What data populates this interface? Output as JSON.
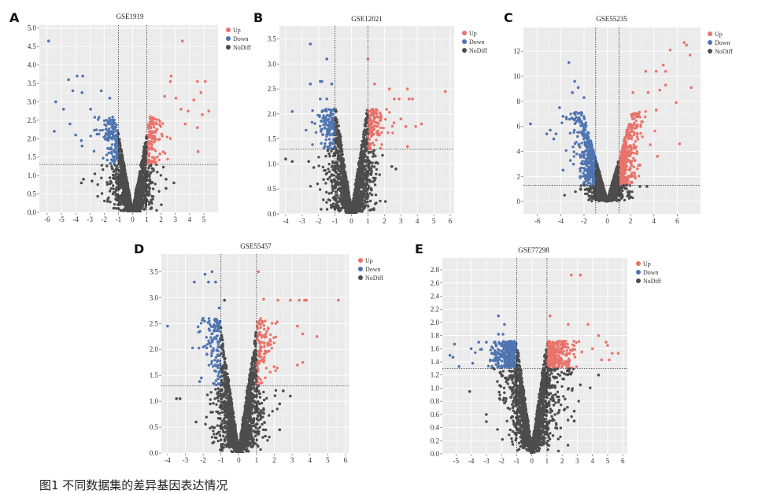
{
  "caption": "图1  不同数据集的差异基因表达情况",
  "colors": {
    "Up": "#e8736a",
    "Down": "#4f74b0",
    "NoDiff": "#4d4d4d",
    "panel_bg": "#ebebeb"
  },
  "chart_data": [
    {
      "type": "scatter",
      "panel": "A",
      "title": "GSE1919",
      "legend": [
        "Up",
        "Down",
        "NoDiff"
      ],
      "legend_position": "right",
      "xlim": [
        -6.55,
        6.0
      ],
      "ylim": [
        0,
        5.08
      ],
      "xticks": [
        -6,
        -5,
        -4,
        -3,
        -2,
        -1,
        0,
        1,
        2,
        3,
        4,
        5
      ],
      "yticks": [
        "0.0",
        "0.5",
        "1.0",
        "1.5",
        "2.0",
        "2.5",
        "3.0",
        "3.5",
        "4.0",
        "4.5",
        "5.0"
      ],
      "logfc_threshold": 1,
      "p_threshold_line": 1.3,
      "grid": true,
      "series": [
        {
          "name": "Up",
          "points": [
            [
              3.5,
              4.65
            ],
            [
              2.7,
              3.7
            ],
            [
              2.65,
              3.55
            ],
            [
              4.55,
              3.55
            ],
            [
              5.1,
              3.55
            ],
            [
              4.8,
              3.25
            ],
            [
              5.35,
              2.75
            ],
            [
              4.9,
              2.65
            ],
            [
              4.3,
              3.05
            ],
            [
              4.55,
              2.3
            ],
            [
              4.6,
              1.65
            ],
            [
              3.7,
              2.4
            ],
            [
              3.05,
              3.1
            ],
            [
              2.25,
              3.15
            ],
            [
              3.4,
              2.8
            ],
            [
              3.9,
              2.75
            ]
          ]
        },
        {
          "name": "Down",
          "points": [
            [
              -5.9,
              4.65
            ],
            [
              -3.9,
              3.7
            ],
            [
              -3.5,
              3.7
            ],
            [
              -4.5,
              3.6
            ],
            [
              -4.2,
              3.3
            ],
            [
              -3.55,
              3.25
            ],
            [
              -5.4,
              3.0
            ],
            [
              -4.85,
              2.8
            ],
            [
              -5.5,
              2.2
            ],
            [
              -4.0,
              2.1
            ],
            [
              -3.6,
              1.95
            ],
            [
              -3.55,
              1.8
            ],
            [
              -4.4,
              2.4
            ],
            [
              -2.2,
              3.3
            ],
            [
              -1.6,
              3.1
            ],
            [
              -2.95,
              2.8
            ]
          ]
        },
        {
          "name": "NoDiff",
          "points": [
            [
              -3.6,
              0.8
            ],
            [
              -3.45,
              0.9
            ],
            [
              -2.85,
              0.85
            ],
            [
              -1.75,
              0.3
            ],
            [
              2.9,
              0.8
            ],
            [
              2.35,
              0.65
            ],
            [
              2.35,
              0.9
            ]
          ]
        }
      ]
    },
    {
      "type": "scatter",
      "panel": "B",
      "title": "GSE12021",
      "legend": [
        "Up",
        "Down",
        "NoDiff"
      ],
      "legend_position": "right",
      "xlim": [
        -4.38,
        6.24
      ],
      "ylim": [
        0,
        3.76
      ],
      "xticks": [
        -4,
        -3,
        -2,
        -1,
        0,
        1,
        2,
        3,
        4,
        5,
        6
      ],
      "yticks": [
        "0.0",
        "0.5",
        "1.0",
        "1.5",
        "2.0",
        "2.5",
        "3.0",
        "3.5"
      ],
      "logfc_threshold": 1,
      "p_threshold_line": 1.3,
      "grid": true,
      "series": [
        {
          "name": "Up",
          "points": [
            [
              5.7,
              2.45
            ],
            [
              1.0,
              3.1
            ],
            [
              1.4,
              2.6
            ],
            [
              2.3,
              2.5
            ],
            [
              3.4,
              2.5
            ],
            [
              3.5,
              2.3
            ],
            [
              3.7,
              2.3
            ],
            [
              2.9,
              2.3
            ],
            [
              2.6,
              2.3
            ],
            [
              4.25,
              1.8
            ],
            [
              3.9,
              1.75
            ],
            [
              3.4,
              1.35
            ],
            [
              3.0,
              1.9
            ],
            [
              3.3,
              1.75
            ]
          ]
        },
        {
          "name": "Down",
          "points": [
            [
              -2.5,
              3.4
            ],
            [
              -1.5,
              3.1
            ],
            [
              -2.5,
              2.6
            ],
            [
              -3.6,
              2.05
            ],
            [
              -1.8,
              2.65
            ],
            [
              -1.9,
              2.65
            ],
            [
              -1.2,
              2.6
            ],
            [
              -1.9,
              2.3
            ],
            [
              -1.5,
              2.3
            ]
          ]
        },
        {
          "name": "NoDiff",
          "points": [
            [
              -4.0,
              1.1
            ],
            [
              -3.6,
              1.05
            ],
            [
              -2.6,
              1.05
            ],
            [
              1.5,
              0.22
            ],
            [
              2.7,
              0.9
            ],
            [
              2.45,
              0.95
            ]
          ]
        }
      ]
    },
    {
      "type": "scatter",
      "panel": "C",
      "title": "GSE55235",
      "legend": [
        "Up",
        "Down",
        "NoDiff"
      ],
      "legend_position": "right",
      "xlim": [
        -7.2,
        8.0
      ],
      "ylim": [
        -1.0,
        13.9
      ],
      "xticks": [
        -6,
        -4,
        -2,
        0,
        2,
        4,
        6
      ],
      "yticks": [
        "0",
        "2",
        "4",
        "6",
        "8",
        "10",
        "12"
      ],
      "logfc_threshold": 1,
      "p_threshold_line": 1.3,
      "grid": true,
      "series": [
        {
          "name": "Up",
          "points": [
            [
              6.6,
              12.7
            ],
            [
              6.8,
              12.5
            ],
            [
              7.1,
              11.7
            ],
            [
              5.4,
              12.1
            ],
            [
              4.8,
              10.9
            ],
            [
              5.0,
              10.4
            ],
            [
              4.2,
              10.4
            ],
            [
              3.3,
              10.4
            ],
            [
              5.0,
              9.3
            ],
            [
              7.2,
              9.1
            ],
            [
              4.5,
              8.9
            ],
            [
              5.9,
              7.9
            ],
            [
              6.2,
              4.6
            ],
            [
              4.3,
              3.6
            ],
            [
              4.2,
              7.3
            ],
            [
              3.5,
              8.7
            ],
            [
              2.2,
              8.7
            ]
          ]
        },
        {
          "name": "Down",
          "points": [
            [
              -6.6,
              6.2
            ],
            [
              -3.3,
              11.1
            ],
            [
              -2.8,
              9.6
            ],
            [
              -2.5,
              9.1
            ],
            [
              -3.0,
              8.7
            ],
            [
              -2.0,
              8.3
            ],
            [
              -4.1,
              7.5
            ],
            [
              -4.9,
              5.7
            ],
            [
              -5.2,
              5.4
            ],
            [
              -4.6,
              5.0
            ],
            [
              -4.4,
              5.4
            ],
            [
              -3.8,
              2.5
            ],
            [
              -3.8,
              6.8
            ],
            [
              -3.5,
              6.6
            ]
          ]
        },
        {
          "name": "NoDiff",
          "points": [
            [
              1.9,
              0.8
            ],
            [
              2.8,
              1.2
            ],
            [
              3.4,
              1.2
            ],
            [
              -2.3,
              1.0
            ]
          ]
        }
      ]
    },
    {
      "type": "scatter",
      "panel": "D",
      "title": "GSE55457",
      "legend": [
        "Up",
        "Down",
        "NoDiff"
      ],
      "legend_position": "right",
      "xlim": [
        -4.35,
        6.18
      ],
      "ylim": [
        0,
        3.84
      ],
      "xticks": [
        -4,
        -3,
        -2,
        -1,
        0,
        1,
        2,
        3,
        4,
        5,
        6
      ],
      "yticks": [
        "0.0",
        "0.5",
        "1.0",
        "1.5",
        "2.0",
        "2.5",
        "3.0",
        "3.5"
      ],
      "logfc_threshold": 1,
      "p_threshold_line": 1.3,
      "grid": true,
      "series": [
        {
          "name": "Up",
          "points": [
            [
              1.1,
              3.5
            ],
            [
              5.6,
              2.95
            ],
            [
              3.8,
              2.95
            ],
            [
              3.7,
              2.95
            ],
            [
              3.4,
              2.95
            ],
            [
              2.9,
              2.95
            ],
            [
              2.2,
              2.95
            ],
            [
              1.4,
              2.97
            ],
            [
              4.4,
              2.25
            ],
            [
              3.6,
              2.3
            ],
            [
              3.3,
              1.7
            ],
            [
              3.6,
              1.75
            ],
            [
              3.3,
              2.45
            ]
          ]
        },
        {
          "name": "Down",
          "points": [
            [
              -1.5,
              3.5
            ],
            [
              -1.9,
              3.45
            ],
            [
              -2.5,
              3.3
            ],
            [
              -1.7,
              3.3
            ],
            [
              -1.3,
              3.3
            ],
            [
              -4.0,
              2.45
            ],
            [
              -1.1,
              2.8
            ],
            [
              -2.0,
              2.6
            ],
            [
              -2.1,
              1.45
            ],
            [
              -2.2,
              1.38
            ]
          ]
        },
        {
          "name": "NoDiff",
          "points": [
            [
              -3.5,
              1.05
            ],
            [
              -3.3,
              1.05
            ],
            [
              -2.4,
              0.6
            ],
            [
              2.3,
              0.45
            ],
            [
              2.9,
              1.1
            ],
            [
              2.5,
              1.2
            ],
            [
              -0.8,
              2.95
            ],
            [
              2.3,
              0.95
            ]
          ]
        }
      ]
    },
    {
      "type": "scatter",
      "panel": "E",
      "title": "GSE77298",
      "legend": [
        "Up",
        "Down",
        "NoDiff"
      ],
      "legend_position": "right",
      "xlim": [
        -5.9,
        6.3
      ],
      "ylim": [
        0,
        2.98
      ],
      "xticks": [
        -5,
        -4,
        -3,
        -2,
        -1,
        0,
        1,
        2,
        3,
        4,
        5,
        6
      ],
      "yticks": [
        "0.0",
        "0.2",
        "0.4",
        "0.6",
        "0.8",
        "1.0",
        "1.2",
        "1.4",
        "1.6",
        "1.8",
        "2.0",
        "2.2",
        "2.4",
        "2.6",
        "2.8"
      ],
      "logfc_threshold": 1,
      "p_threshold_line": 1.3,
      "grid": true,
      "series": [
        {
          "name": "Up",
          "points": [
            [
              2.6,
              2.72
            ],
            [
              3.2,
              2.72
            ],
            [
              1.2,
              2.1
            ],
            [
              2.4,
              1.97
            ],
            [
              3.7,
              1.97
            ],
            [
              4.4,
              1.8
            ],
            [
              4.9,
              1.7
            ],
            [
              5.0,
              1.65
            ],
            [
              5.7,
              1.53
            ],
            [
              5.3,
              1.53
            ],
            [
              4.0,
              1.6
            ],
            [
              4.6,
              1.43
            ],
            [
              5.1,
              1.43
            ],
            [
              3.3,
              1.55
            ]
          ]
        },
        {
          "name": "Down",
          "points": [
            [
              -2.2,
              2.1
            ],
            [
              -1.8,
              1.97
            ],
            [
              -2.2,
              1.82
            ],
            [
              -1.9,
              1.82
            ],
            [
              -5.1,
              1.67
            ],
            [
              -5.4,
              1.5
            ],
            [
              -5.2,
              1.47
            ],
            [
              -4.0,
              1.6
            ],
            [
              -3.5,
              1.7
            ],
            [
              -3.0,
              1.7
            ],
            [
              -4.8,
              1.33
            ],
            [
              -3.9,
              1.38
            ]
          ]
        },
        {
          "name": "NoDiff",
          "points": [
            [
              4.4,
              1.2
            ],
            [
              -3.0,
              0.6
            ],
            [
              2.8,
              0.5
            ],
            [
              -4.1,
              0.95
            ],
            [
              3.2,
              1.05
            ],
            [
              2.8,
              0.65
            ]
          ]
        }
      ]
    }
  ]
}
